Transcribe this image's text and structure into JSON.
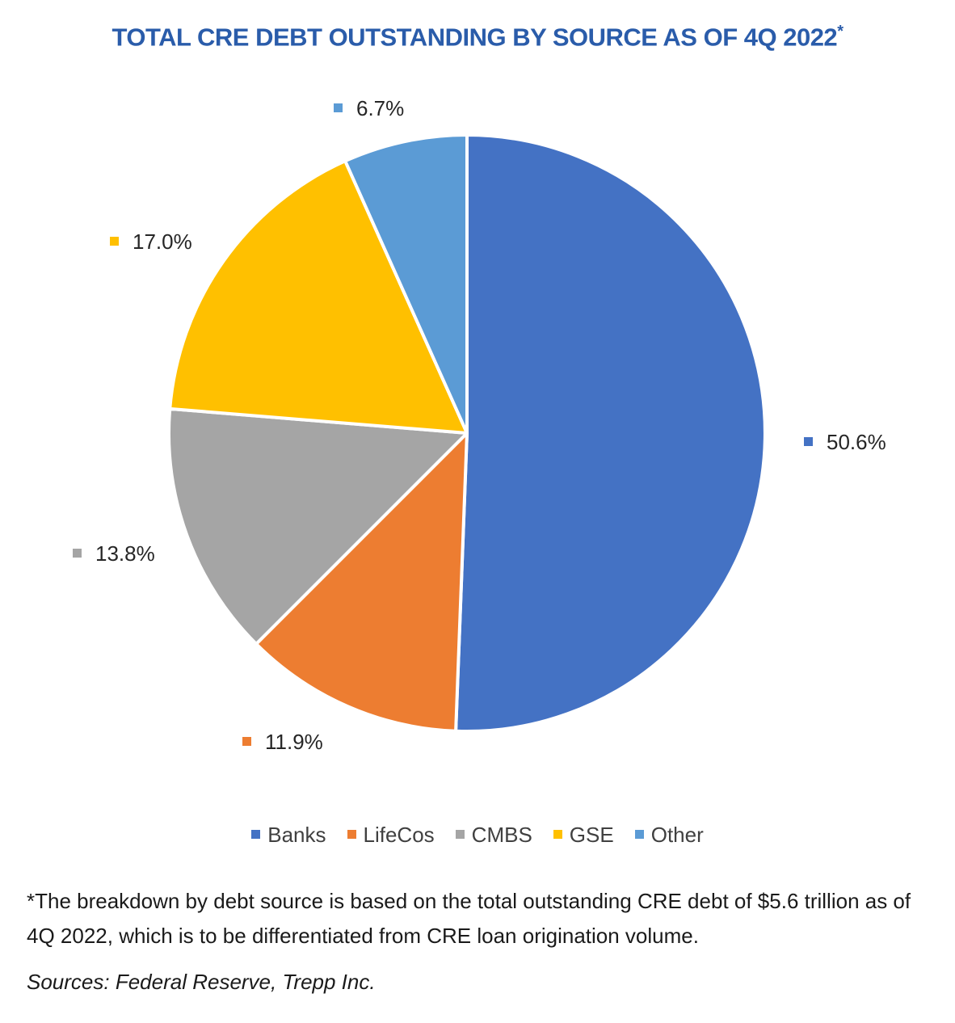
{
  "title": "TOTAL CRE DEBT OUTSTANDING BY SOURCE AS OF 4Q 2022",
  "title_marker": "*",
  "chart_data": {
    "type": "pie",
    "title": "TOTAL CRE DEBT OUTSTANDING BY SOURCE AS OF 4Q 2022*",
    "legend_position": "bottom",
    "slices": [
      {
        "name": "Banks",
        "value": 50.6,
        "label": "50.6%",
        "color": "#4472c4"
      },
      {
        "name": "LifeCos",
        "value": 11.9,
        "label": "11.9%",
        "color": "#ed7d31"
      },
      {
        "name": "CMBS",
        "value": 13.8,
        "label": "13.8%",
        "color": "#a5a5a5"
      },
      {
        "name": "GSE",
        "value": 17.0,
        "label": "17.0%",
        "color": "#ffc000"
      },
      {
        "name": "Other",
        "value": 6.7,
        "label": "6.7%",
        "color": "#5b9bd5"
      }
    ]
  },
  "footnote": "*The breakdown by debt source is based on the total outstanding CRE debt of $5.6 trillion as of 4Q 2022, which is to be differentiated from CRE loan origination volume.",
  "source": "Sources: Federal Reserve, Trepp Inc."
}
